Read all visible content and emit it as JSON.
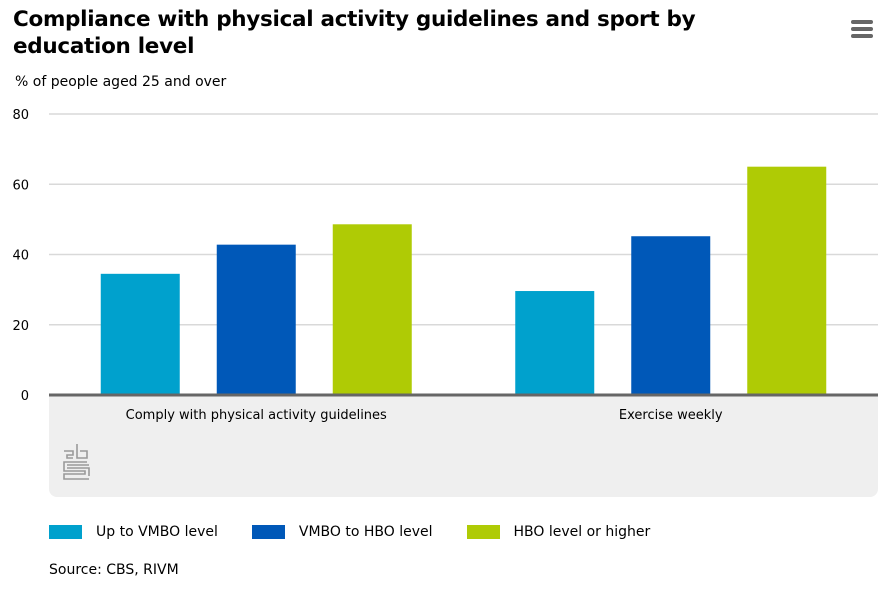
{
  "header": {
    "title": "Compliance with physical activity guidelines and sport by education level",
    "subtitle": "% of people aged 25 and over",
    "menu_icon": "hamburger-menu-icon"
  },
  "colors": {
    "up_to_vmbo": "#00a1cd",
    "vmbo_to_hbo": "#0058b8",
    "hbo_or_higher": "#afcb05",
    "axis": "#666666",
    "grid": "#d9d9d9",
    "label_band": "#efefef"
  },
  "chart_data": {
    "type": "bar",
    "title": "Compliance with physical activity guidelines and sport by education level",
    "subtitle": "% of people aged 25 and over",
    "xlabel": "",
    "ylabel": "% of people aged 25 and over",
    "categories": [
      "Comply with physical activity guidelines",
      "Exercise weekly"
    ],
    "series": [
      {
        "name": "Up to VMBO level",
        "color": "#00a1cd",
        "values": [
          34.5,
          29.6
        ]
      },
      {
        "name": "VMBO to HBO level",
        "color": "#0058b8",
        "values": [
          42.8,
          45.2
        ]
      },
      {
        "name": "HBO level or higher",
        "color": "#afcb05",
        "values": [
          48.6,
          65.0
        ]
      }
    ],
    "ylim": [
      0,
      80
    ],
    "yticks": [
      0,
      20,
      40,
      60,
      80
    ],
    "grid": true,
    "legend_position": "bottom-left"
  },
  "legend": [
    {
      "label": "Up to VMBO level"
    },
    {
      "label": "VMBO to HBO level"
    },
    {
      "label": "HBO level or higher"
    }
  ],
  "footer": {
    "source": "Source: CBS, RIVM",
    "logo": "cbs-logo-icon"
  }
}
